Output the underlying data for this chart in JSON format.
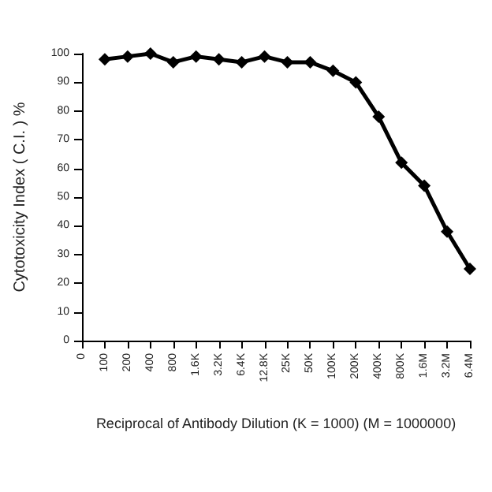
{
  "chart_data": {
    "type": "line",
    "xlabel": "Reciprocal of Antibody Dilution (K = 1000) (M = 1000000)",
    "ylabel": "Cytotoxicity Index ( C.I. ) %",
    "categories": [
      "0",
      "100",
      "200",
      "400",
      "800",
      "1.6K",
      "3.2K",
      "6.4K",
      "12.8K",
      "25K",
      "50K",
      "100K",
      "200K",
      "400K",
      "800K",
      "1.6M",
      "3.2M",
      "6.4M"
    ],
    "series": [
      {
        "color": "#000000",
        "values": [
          null,
          98,
          99,
          100,
          97,
          99,
          98,
          97,
          99,
          97,
          97,
          94,
          90,
          78,
          62,
          54,
          38,
          25
        ]
      }
    ],
    "ylim": [
      0,
      100
    ],
    "yticks": [
      0,
      10,
      20,
      30,
      40,
      50,
      60,
      70,
      80,
      90,
      100
    ],
    "grid": false,
    "marker": "diamond",
    "line_style": "solid"
  }
}
